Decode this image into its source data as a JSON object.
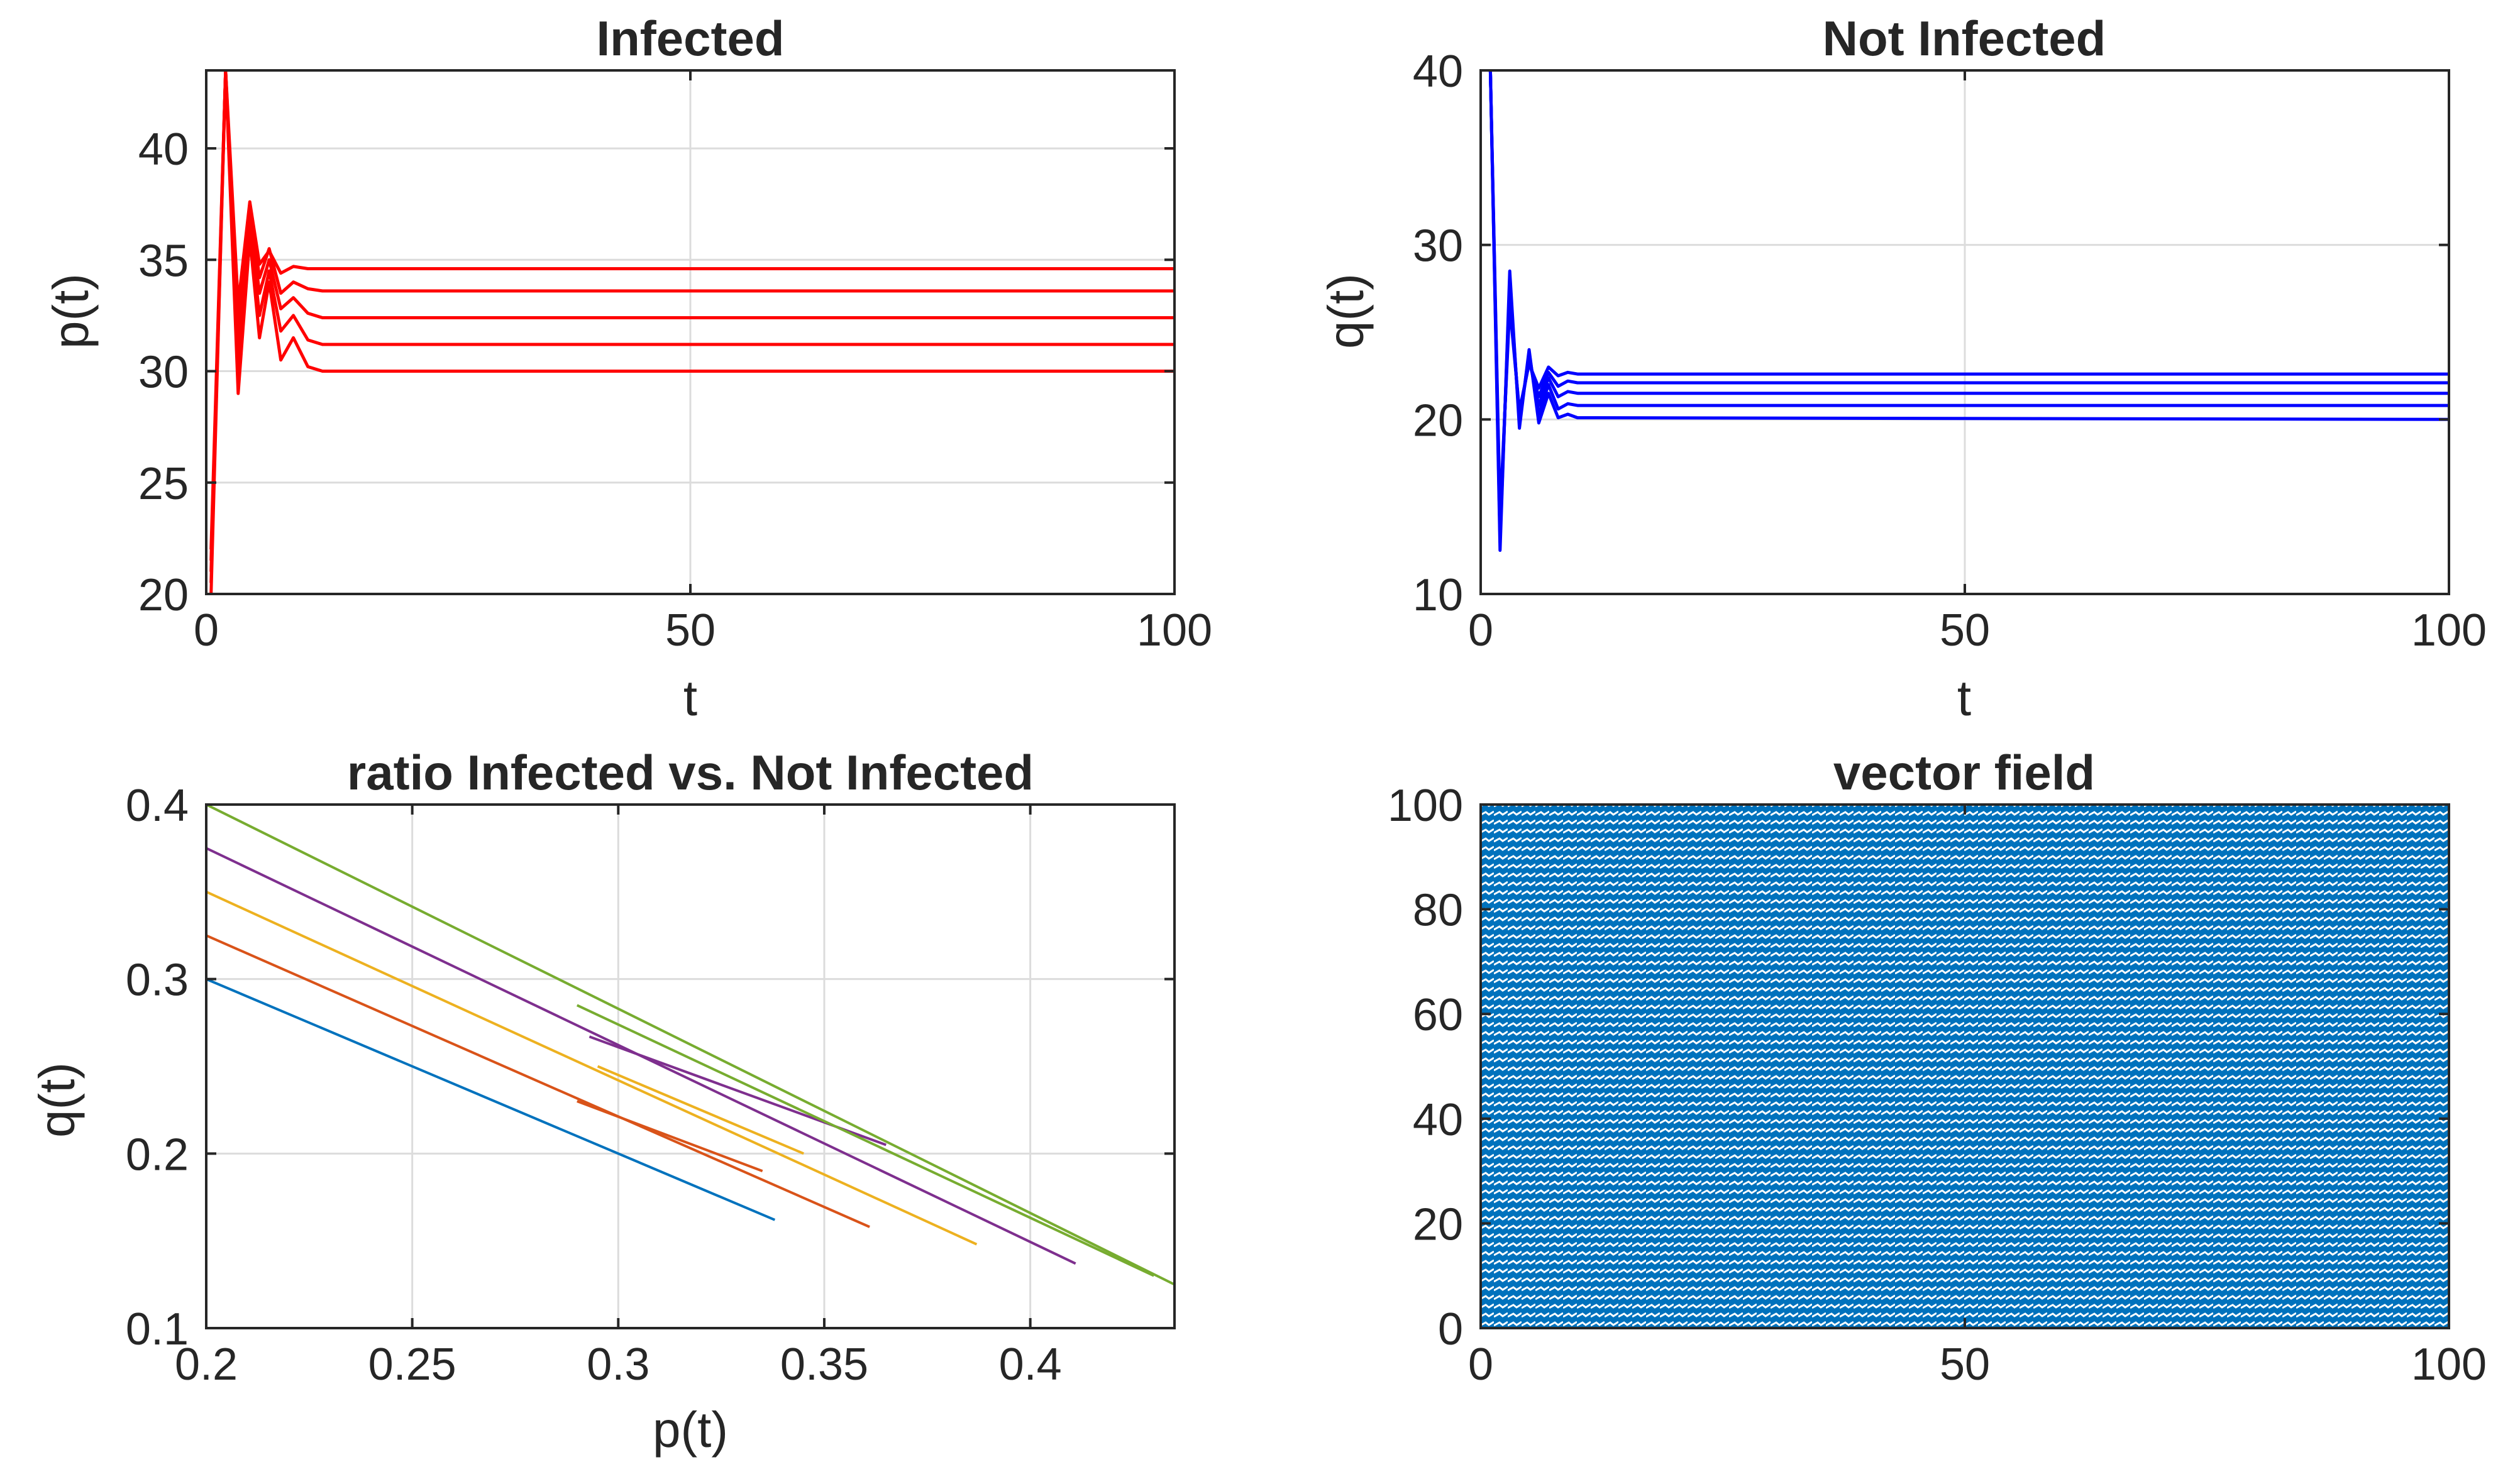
{
  "colors": {
    "background": "#ffffff",
    "axes": "#262626",
    "grid": "#dcdcdc",
    "infected": "#ff0000",
    "not_infected": "#0000ff",
    "vector_field": "#0072bd",
    "ratio_series": [
      "#0072bd",
      "#d95319",
      "#edb120",
      "#7e2f8e",
      "#77ac30"
    ]
  },
  "chart_data": [
    {
      "id": "infected",
      "type": "line",
      "title": "Infected",
      "xlabel": "t",
      "ylabel": "p(t)",
      "xlim": [
        0,
        100
      ],
      "ylim": [
        20,
        43.5
      ],
      "xticks": [
        0,
        50,
        100
      ],
      "yticks": [
        20,
        25,
        30,
        35,
        40
      ],
      "xtick_labels": [
        "0",
        "50",
        "100"
      ],
      "ytick_labels": [
        "20",
        "25",
        "30",
        "35",
        "40"
      ],
      "grid": true,
      "color": "#ff0000",
      "series": [
        {
          "values": [
            [
              0.5,
              20
            ],
            [
              2,
              43.5
            ],
            [
              3.3,
              29
            ],
            [
              4.5,
              36
            ],
            [
              5.5,
              31.5
            ],
            [
              6.5,
              34
            ],
            [
              7.7,
              30.5
            ],
            [
              9,
              31.5
            ],
            [
              10.5,
              30.2
            ],
            [
              12,
              30
            ],
            [
              100,
              30
            ]
          ]
        },
        {
          "values": [
            [
              0.5,
              20.5
            ],
            [
              2,
              43.5
            ],
            [
              3.3,
              30
            ],
            [
              4.5,
              36.5
            ],
            [
              5.5,
              32.5
            ],
            [
              6.5,
              34.5
            ],
            [
              7.7,
              31.8
            ],
            [
              9,
              32.5
            ],
            [
              10.5,
              31.4
            ],
            [
              12,
              31.2
            ],
            [
              100,
              31.2
            ]
          ]
        },
        {
          "values": [
            [
              0.5,
              21
            ],
            [
              2,
              43.5
            ],
            [
              3.3,
              31
            ],
            [
              4.5,
              37
            ],
            [
              5.5,
              33.5
            ],
            [
              6.5,
              35
            ],
            [
              7.7,
              32.8
            ],
            [
              9,
              33.3
            ],
            [
              10.5,
              32.6
            ],
            [
              12,
              32.4
            ],
            [
              100,
              32.4
            ]
          ]
        },
        {
          "values": [
            [
              0.5,
              21.5
            ],
            [
              2,
              43.5
            ],
            [
              3.3,
              32
            ],
            [
              4.5,
              37.5
            ],
            [
              5.5,
              34.2
            ],
            [
              6.5,
              35.5
            ],
            [
              7.7,
              33.5
            ],
            [
              9,
              34
            ],
            [
              10.5,
              33.7
            ],
            [
              12,
              33.6
            ],
            [
              100,
              33.6
            ]
          ]
        },
        {
          "values": [
            [
              0.5,
              22
            ],
            [
              2,
              43.5
            ],
            [
              3.3,
              33
            ],
            [
              4.5,
              37.6
            ],
            [
              5.5,
              34.8
            ],
            [
              6.5,
              35.4
            ],
            [
              7.7,
              34.4
            ],
            [
              9,
              34.7
            ],
            [
              10.5,
              34.6
            ],
            [
              12,
              34.6
            ],
            [
              100,
              34.6
            ]
          ]
        }
      ]
    },
    {
      "id": "not-infected",
      "type": "line",
      "title": "Not Infected",
      "xlabel": "t",
      "ylabel": "q(t)",
      "xlim": [
        0,
        100
      ],
      "ylim": [
        10,
        40
      ],
      "xticks": [
        0,
        50,
        100
      ],
      "yticks": [
        10,
        20,
        30,
        40
      ],
      "xtick_labels": [
        "0",
        "50",
        "100"
      ],
      "ytick_labels": [
        "10",
        "20",
        "30",
        "40"
      ],
      "grid": true,
      "color": "#0000ff",
      "series": [
        {
          "values": [
            [
              1,
              40
            ],
            [
              2,
              12.5
            ],
            [
              3,
              28.5
            ],
            [
              4,
              19.5
            ],
            [
              5,
              24
            ],
            [
              6,
              19.8
            ],
            [
              7,
              21.5
            ],
            [
              8,
              20.1
            ],
            [
              9,
              20.3
            ],
            [
              10,
              20.1
            ],
            [
              100,
              20
            ]
          ]
        },
        {
          "values": [
            [
              1,
              40
            ],
            [
              2,
              13
            ],
            [
              3,
              28
            ],
            [
              4,
              19.8
            ],
            [
              5,
              23.8
            ],
            [
              6,
              20.3
            ],
            [
              7,
              22
            ],
            [
              8,
              20.6
            ],
            [
              9,
              20.9
            ],
            [
              10,
              20.8
            ],
            [
              100,
              20.8
            ]
          ]
        },
        {
          "values": [
            [
              1,
              40
            ],
            [
              2,
              13.5
            ],
            [
              3,
              27.5
            ],
            [
              4,
              20
            ],
            [
              5,
              23.5
            ],
            [
              6,
              20.8
            ],
            [
              7,
              22.4
            ],
            [
              8,
              21.3
            ],
            [
              9,
              21.6
            ],
            [
              10,
              21.5
            ],
            [
              100,
              21.5
            ]
          ]
        },
        {
          "values": [
            [
              1,
              40
            ],
            [
              2,
              14
            ],
            [
              3,
              27
            ],
            [
              4,
              20.3
            ],
            [
              5,
              23.3
            ],
            [
              6,
              21.3
            ],
            [
              7,
              22.7
            ],
            [
              8,
              21.9
            ],
            [
              9,
              22.2
            ],
            [
              10,
              22.1
            ],
            [
              100,
              22.1
            ]
          ]
        },
        {
          "values": [
            [
              1,
              40
            ],
            [
              2,
              14.5
            ],
            [
              3,
              26.5
            ],
            [
              4,
              20.5
            ],
            [
              5,
              23.2
            ],
            [
              6,
              21.8
            ],
            [
              7,
              23
            ],
            [
              8,
              22.5
            ],
            [
              9,
              22.7
            ],
            [
              10,
              22.6
            ],
            [
              100,
              22.6
            ]
          ]
        }
      ]
    },
    {
      "id": "ratio",
      "type": "line",
      "title": "ratio Infected vs. Not Infected",
      "xlabel": "p(t)",
      "ylabel": "q(t)",
      "xlim": [
        0.2,
        0.435
      ],
      "ylim": [
        0.1,
        0.4
      ],
      "xticks": [
        0.2,
        0.25,
        0.3,
        0.35,
        0.4
      ],
      "yticks": [
        0.1,
        0.2,
        0.3,
        0.4
      ],
      "xtick_labels": [
        "0.2",
        "0.25",
        "0.3",
        "0.35",
        "0.4"
      ],
      "ytick_labels": [
        "0.1",
        "0.2",
        "0.3",
        "0.4"
      ],
      "grid": true,
      "series": [
        {
          "values": [
            [
              0.2,
              0.3
            ],
            [
              0.338,
              0.162
            ]
          ]
        },
        {
          "values": [
            [
              0.2,
              0.325
            ],
            [
              0.361,
              0.158
            ]
          ],
          "extra": [
            [
              0.29,
              0.23
            ],
            [
              0.335,
              0.19
            ]
          ]
        },
        {
          "values": [
            [
              0.2,
              0.35
            ],
            [
              0.387,
              0.148
            ]
          ],
          "extra": [
            [
              0.295,
              0.25
            ],
            [
              0.345,
              0.2
            ]
          ]
        },
        {
          "values": [
            [
              0.2,
              0.375
            ],
            [
              0.411,
              0.137
            ]
          ],
          "extra": [
            [
              0.293,
              0.267
            ],
            [
              0.365,
              0.205
            ]
          ]
        },
        {
          "values": [
            [
              0.2,
              0.4
            ],
            [
              0.435,
              0.125
            ]
          ],
          "extra": [
            [
              0.29,
              0.285
            ],
            [
              0.43,
              0.13
            ]
          ]
        }
      ]
    },
    {
      "id": "vector-field",
      "type": "heatmap",
      "title": "vector field",
      "xlabel": "",
      "ylabel": "",
      "xlim": [
        0,
        100
      ],
      "ylim": [
        0,
        100
      ],
      "xticks": [
        0,
        50,
        100
      ],
      "yticks": [
        0,
        20,
        40,
        60,
        80,
        100
      ],
      "xtick_labels": [
        "0",
        "50",
        "100"
      ],
      "ytick_labels": [
        "0",
        "20",
        "40",
        "60",
        "80",
        "100"
      ],
      "grid": false,
      "color": "#0072bd",
      "description": "dense quiver field filling the axes"
    }
  ]
}
